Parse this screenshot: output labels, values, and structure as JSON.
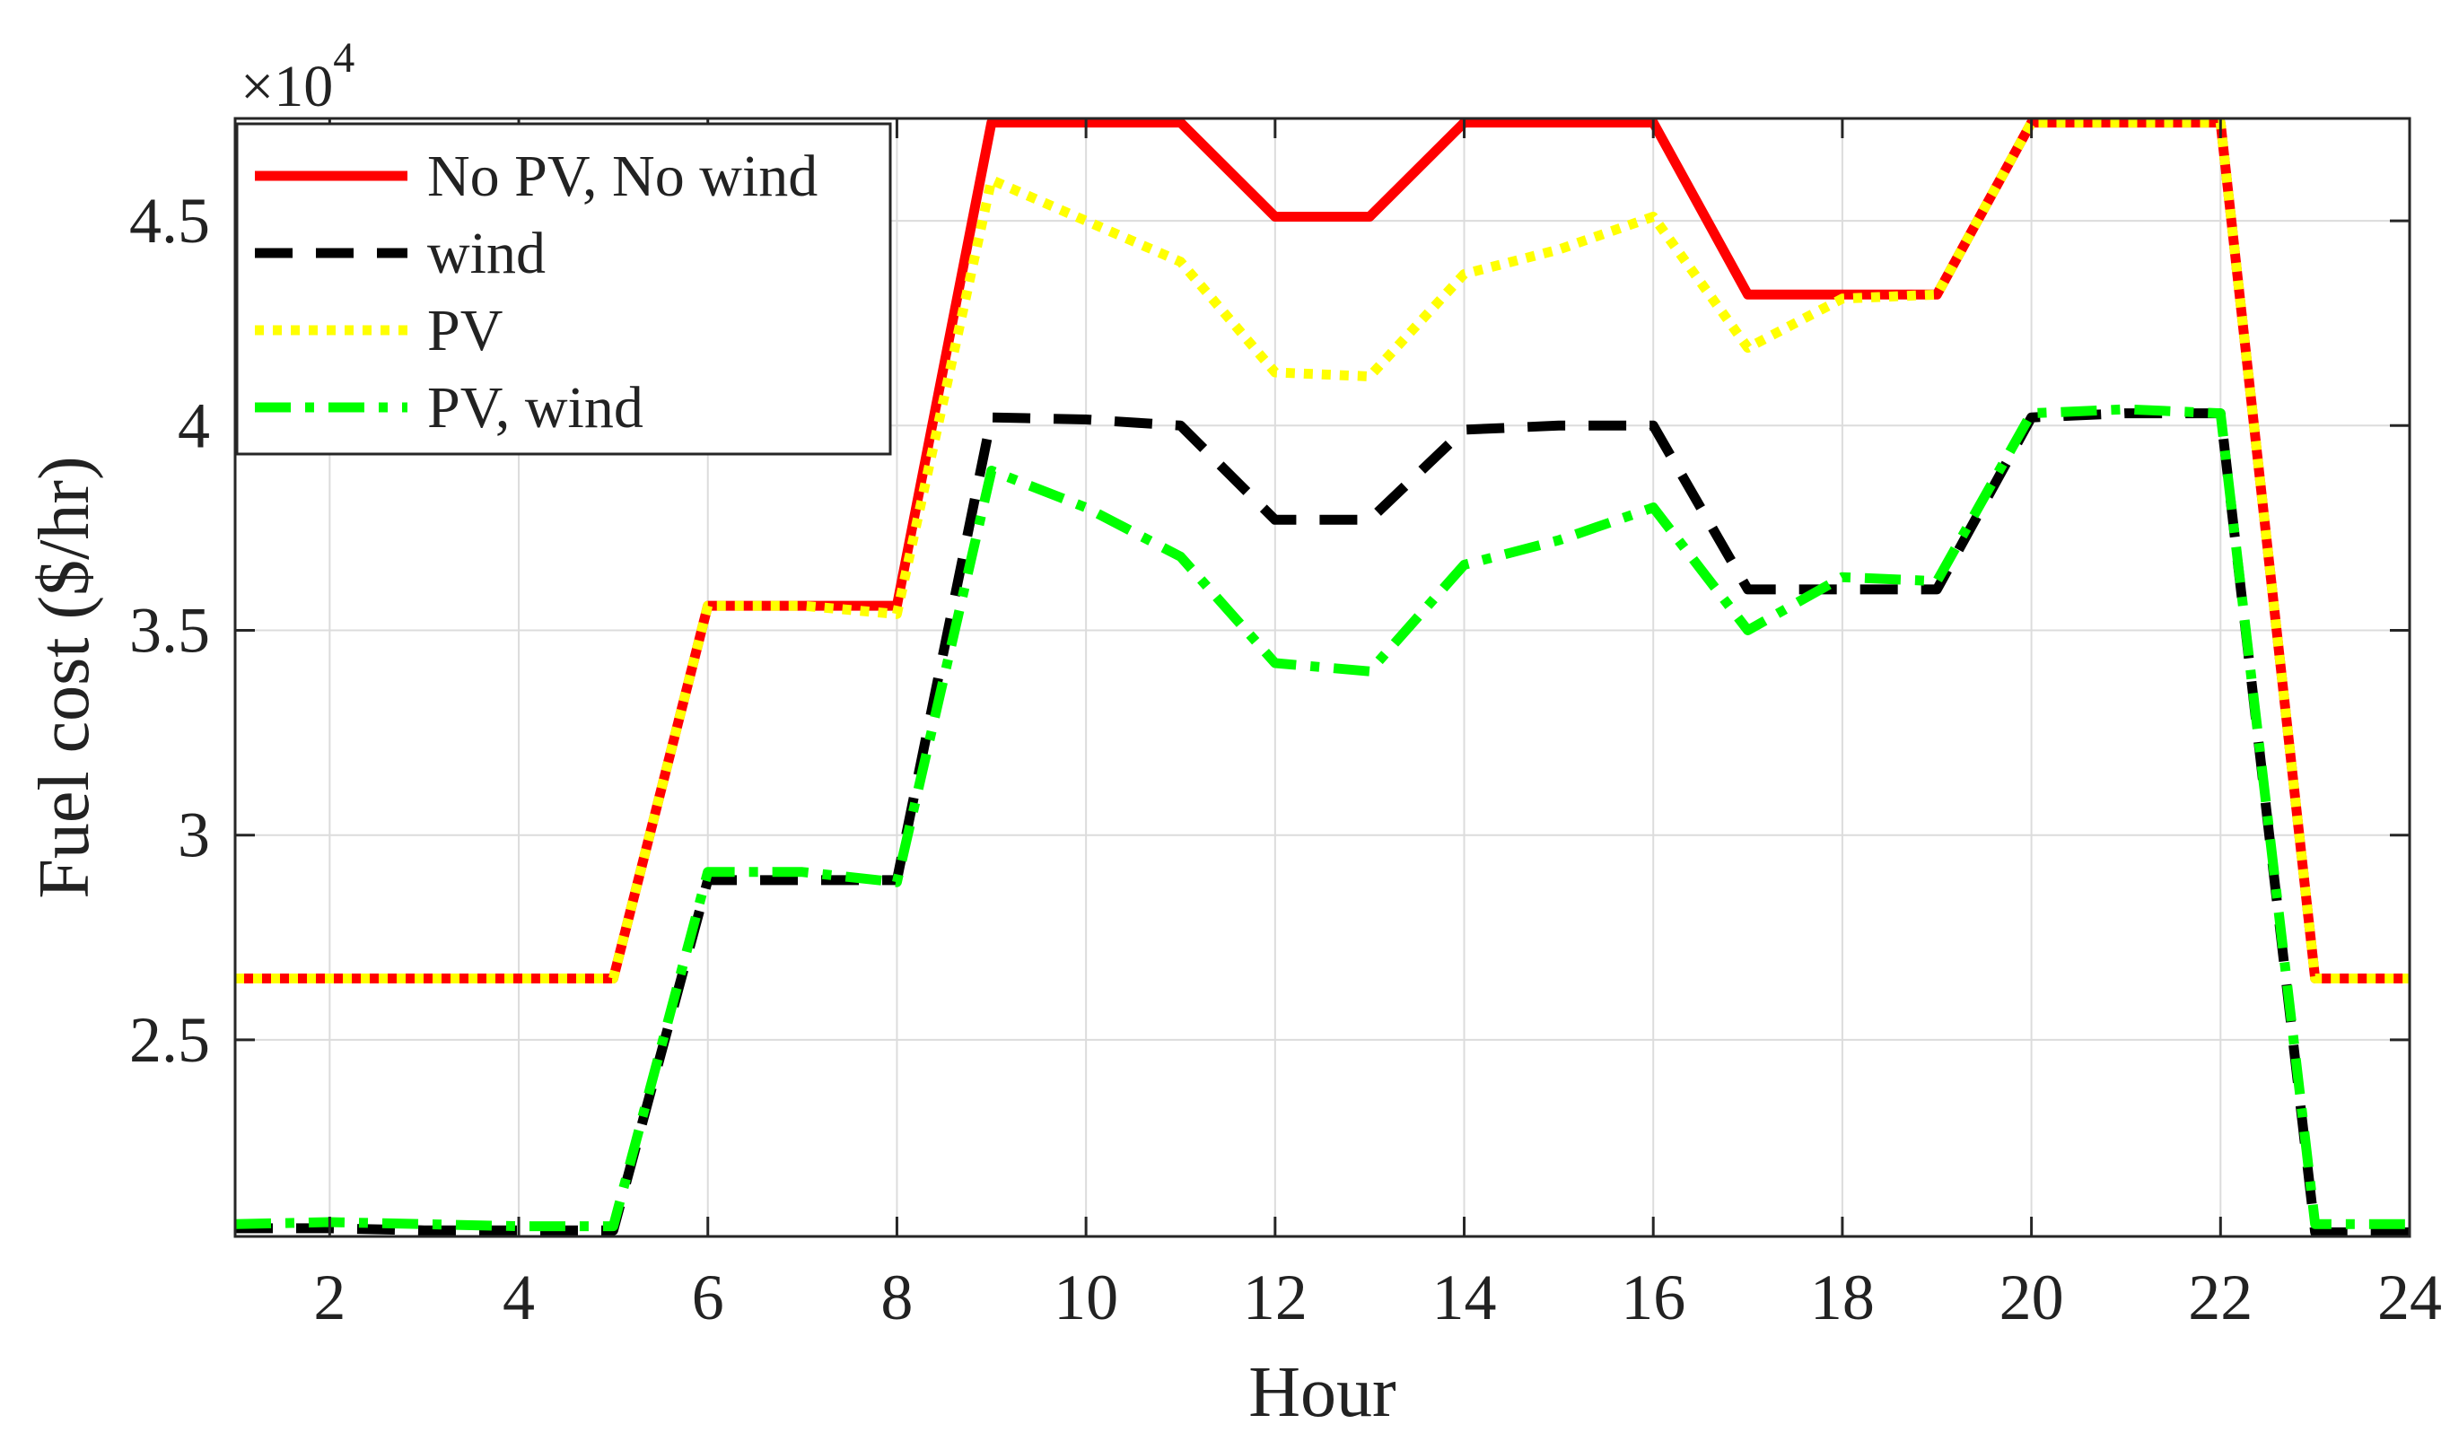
{
  "chart_data": {
    "type": "line",
    "title": "",
    "xlabel": "Hour",
    "ylabel": "Fuel cost ($/hr)",
    "y_multiplier_label": "×10",
    "y_multiplier_exponent": "4",
    "xlim": [
      1,
      24
    ],
    "ylim": [
      2.02,
      4.75
    ],
    "xticks": [
      2,
      4,
      6,
      8,
      10,
      12,
      14,
      16,
      18,
      20,
      22,
      24
    ],
    "yticks": [
      2.5,
      3,
      3.5,
      4,
      4.5
    ],
    "ytick_labels": [
      "2.5",
      "3",
      "3.5",
      "4",
      "4.5"
    ],
    "grid": true,
    "legend_position": "top-left",
    "x": [
      1,
      2,
      3,
      4,
      5,
      6,
      7,
      8,
      9,
      10,
      11,
      12,
      13,
      14,
      15,
      16,
      17,
      18,
      19,
      20,
      21,
      22,
      23,
      24
    ],
    "series": [
      {
        "name": "No PV, No wind",
        "color": "#ff0000",
        "style": "solid",
        "values": [
          2.65,
          2.65,
          2.65,
          2.65,
          2.65,
          3.56,
          3.56,
          3.56,
          4.74,
          4.74,
          4.74,
          4.51,
          4.51,
          4.74,
          4.74,
          4.74,
          4.32,
          4.32,
          4.32,
          4.74,
          4.74,
          4.74,
          2.65,
          2.65
        ]
      },
      {
        "name": "wind",
        "color": "#000000",
        "style": "dashed",
        "values": [
          2.04,
          2.04,
          2.035,
          2.035,
          2.035,
          2.89,
          2.89,
          2.89,
          4.02,
          4.015,
          4.0,
          3.77,
          3.77,
          3.99,
          4.0,
          4.0,
          3.6,
          3.6,
          3.6,
          4.02,
          4.03,
          4.03,
          2.03,
          2.03
        ]
      },
      {
        "name": "PV",
        "color": "#ffff00",
        "style": "dotted",
        "values": [
          2.65,
          2.65,
          2.65,
          2.65,
          2.65,
          3.56,
          3.56,
          3.54,
          4.6,
          4.5,
          4.4,
          4.13,
          4.12,
          4.37,
          4.43,
          4.51,
          4.19,
          4.31,
          4.32,
          4.74,
          4.74,
          4.74,
          2.65,
          2.65
        ]
      },
      {
        "name": "PV, wind",
        "color": "#00ff00",
        "style": "dashdot",
        "values": [
          2.05,
          2.055,
          2.05,
          2.045,
          2.045,
          2.91,
          2.91,
          2.885,
          3.89,
          3.8,
          3.68,
          3.42,
          3.4,
          3.66,
          3.72,
          3.8,
          3.5,
          3.63,
          3.62,
          4.03,
          4.04,
          4.03,
          2.05,
          2.05
        ]
      }
    ]
  }
}
